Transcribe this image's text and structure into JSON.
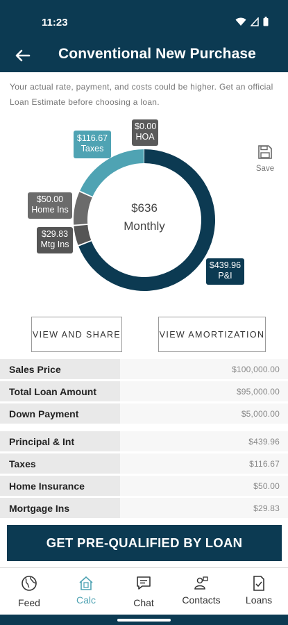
{
  "status_bar": {
    "time": "11:23"
  },
  "header": {
    "title": "Conventional New Purchase"
  },
  "disclaimer": "Your actual rate, payment, and costs could be higher. Get an official Loan Estimate before choosing a loan.",
  "chart_data": {
    "type": "pie",
    "center": {
      "amount": "$636",
      "label": "Monthly"
    },
    "categories": [
      "P&I",
      "Mtg Ins",
      "Home Ins",
      "Taxes",
      "HOA"
    ],
    "values": [
      439.96,
      29.83,
      50.0,
      116.67,
      0.0
    ],
    "colors": [
      "#0c3a52",
      "#555555",
      "#6b6b6b",
      "#4fa3b3",
      "#5a5a5a"
    ],
    "labels": [
      {
        "name": "P&I",
        "value": "$439.96"
      },
      {
        "name": "Mtg Ins",
        "value": "$29.83"
      },
      {
        "name": "Home Ins",
        "value": "$50.00"
      },
      {
        "name": "Taxes",
        "value": "$116.67"
      },
      {
        "name": "HOA",
        "value": "$0.00"
      }
    ]
  },
  "save": {
    "label": "Save"
  },
  "buttons": {
    "share": "VIEW AND SHARE",
    "amortization": "VIEW AMORTIZATION"
  },
  "summary": [
    {
      "label": "Sales Price",
      "value": "$100,000.00"
    },
    {
      "label": "Total Loan Amount",
      "value": "$95,000.00"
    },
    {
      "label": "Down Payment",
      "value": "$5,000.00"
    }
  ],
  "breakdown": [
    {
      "label": "Principal & Int",
      "value": "$439.96"
    },
    {
      "label": "Taxes",
      "value": "$116.67"
    },
    {
      "label": "Home Insurance",
      "value": "$50.00"
    },
    {
      "label": "Mortgage Ins",
      "value": "$29.83"
    }
  ],
  "cta": {
    "label": "GET PRE-QUALIFIED BY LOAN"
  },
  "nav": {
    "feed": "Feed",
    "calc": "Calc",
    "chat": "Chat",
    "contacts": "Contacts",
    "loans": "Loans",
    "active": "Calc"
  },
  "colors": {
    "primary": "#0c3a52",
    "accent": "#4fa3b3"
  }
}
